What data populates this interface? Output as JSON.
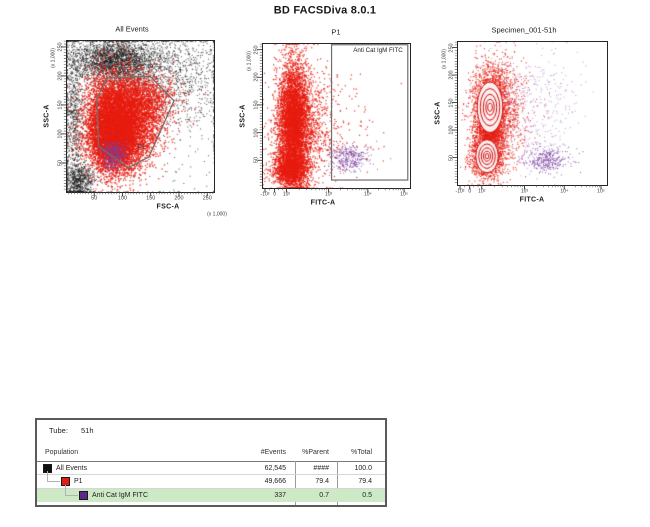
{
  "app_title": "BD FACSDiva 8.0.1",
  "colors": {
    "event_black": "#181818",
    "population_red": "#e71c10",
    "population_purple": "#7b3fa0",
    "contour_red": "#cc1212",
    "gate_stroke": "#6f6f6f",
    "axis_stroke": "#262626",
    "table_border": "#5a5a5a",
    "row_highlight_green": "#cde9c6"
  },
  "chart_data": [
    {
      "id": "all-events",
      "type": "scatter",
      "title": "All Events",
      "xlabel": "FSC-A",
      "ylabel": "SSC-A",
      "x_unit": "(x 1,000)",
      "y_unit": "(x 1,000)",
      "x_scale": "linear",
      "y_scale": "linear",
      "xlim": [
        0,
        262
      ],
      "ylim": [
        0,
        262
      ],
      "x_ticks": [
        50,
        100,
        150,
        200,
        250
      ],
      "y_ticks": [
        50,
        100,
        150,
        200,
        250
      ],
      "gates": [
        {
          "name": "P1",
          "shape": "polygon",
          "label_pos": [
            0.51,
            0.71
          ],
          "vertices": [
            [
              0.28,
              0.25
            ],
            [
              0.57,
              0.24
            ],
            [
              0.73,
              0.4
            ],
            [
              0.56,
              0.77
            ],
            [
              0.42,
              0.84
            ],
            [
              0.22,
              0.7
            ],
            [
              0.21,
              0.38
            ]
          ]
        }
      ],
      "populations": [
        {
          "name": "ungated events",
          "color": "#181818",
          "alpha": 0.75,
          "size": 1,
          "clusters": [
            {
              "cx": 0.33,
              "cy": 0.13,
              "sx": 0.14,
              "sy": 0.07,
              "n": 2400
            },
            {
              "cx": 0.55,
              "cy": 0.22,
              "sx": 0.25,
              "sy": 0.13,
              "n": 900
            },
            {
              "cx": 0.8,
              "cy": 0.25,
              "sx": 0.15,
              "sy": 0.18,
              "n": 450
            },
            {
              "cx": 0.05,
              "cy": 0.5,
              "sx": 0.035,
              "sy": 0.3,
              "n": 900
            },
            {
              "cx": 0.09,
              "cy": 0.92,
              "sx": 0.055,
              "sy": 0.055,
              "n": 650
            },
            {
              "cx": 0.5,
              "cy": 0.45,
              "sx": 0.45,
              "sy": 0.4,
              "n": 420
            }
          ]
        },
        {
          "name": "P1 events",
          "color": "#e71c10",
          "alpha": 0.9,
          "size": 1.3,
          "clusters": [
            {
              "cx": 0.38,
              "cy": 0.52,
              "sx": 0.12,
              "sy": 0.14,
              "n": 5200
            },
            {
              "cx": 0.33,
              "cy": 0.68,
              "sx": 0.09,
              "sy": 0.1,
              "n": 2600
            },
            {
              "cx": 0.47,
              "cy": 0.4,
              "sx": 0.13,
              "sy": 0.09,
              "n": 1200
            },
            {
              "cx": 0.26,
              "cy": 0.55,
              "sx": 0.065,
              "sy": 0.16,
              "n": 1500
            }
          ]
        },
        {
          "name": "Anti Cat IgM FITC events",
          "color": "#7b3fa0",
          "alpha": 0.9,
          "size": 1.2,
          "clusters": [
            {
              "cx": 0.32,
              "cy": 0.75,
              "sx": 0.045,
              "sy": 0.05,
              "n": 280
            }
          ]
        }
      ]
    },
    {
      "id": "p1",
      "type": "scatter",
      "title": "P1",
      "xlabel": "FITC-A",
      "ylabel": "SSC-A",
      "y_unit": "(x 1,000)",
      "x_scale": "biexponential",
      "y_scale": "linear",
      "ylim": [
        0,
        262
      ],
      "y_ticks": [
        50,
        100,
        150,
        200,
        250
      ],
      "x_ticks_log": [
        {
          "label": "-10²",
          "f": 0.02
        },
        {
          "label": "0",
          "f": 0.085
        },
        {
          "label": "10²",
          "f": 0.165
        },
        {
          "label": "10³",
          "f": 0.45
        },
        {
          "label": "10⁴",
          "f": 0.715
        },
        {
          "label": "10⁵",
          "f": 0.96
        }
      ],
      "gates": [
        {
          "name": "Anti Cat IgM FITC",
          "shape": "rect",
          "x0": 0.47,
          "y0": 0.012,
          "x1": 0.985,
          "y1": 0.945
        }
      ],
      "populations": [
        {
          "name": "P1 events",
          "color": "#e71c10",
          "alpha": 0.9,
          "size": 1.2,
          "clusters": [
            {
              "cx": 0.21,
              "cy": 0.55,
              "sx": 0.05,
              "sy": 0.21,
              "n": 5200
            },
            {
              "cx": 0.19,
              "cy": 0.87,
              "sx": 0.06,
              "sy": 0.055,
              "n": 1600
            },
            {
              "cx": 0.28,
              "cy": 0.6,
              "sx": 0.1,
              "sy": 0.18,
              "n": 900
            },
            {
              "cx": 0.45,
              "cy": 0.55,
              "sx": 0.18,
              "sy": 0.22,
              "n": 220
            }
          ]
        },
        {
          "name": "Anti Cat IgM FITC events",
          "color": "#7b3fa0",
          "alpha": 0.85,
          "size": 1,
          "clusters": [
            {
              "cx": 0.58,
              "cy": 0.79,
              "sx": 0.07,
              "sy": 0.045,
              "n": 330
            }
          ]
        }
      ]
    },
    {
      "id": "specimen-001-51h",
      "type": "scatter-contour",
      "title": "Specimen_001-51h",
      "xlabel": "FITC-A",
      "ylabel": "SSC-A",
      "y_unit": "(x 1,000)",
      "x_scale": "biexponential",
      "y_scale": "linear",
      "ylim": [
        0,
        262
      ],
      "y_ticks": [
        50,
        100,
        150,
        200,
        250
      ],
      "x_ticks_log": [
        {
          "label": "-10²",
          "f": 0.02
        },
        {
          "label": "0",
          "f": 0.085
        },
        {
          "label": "10²",
          "f": 0.165
        },
        {
          "label": "10³",
          "f": 0.45
        },
        {
          "label": "10⁴",
          "f": 0.715
        },
        {
          "label": "10⁵",
          "f": 0.96
        }
      ],
      "contours": {
        "color": "#cc1212",
        "lobes": [
          {
            "cx": 0.22,
            "cy": 0.46,
            "rings": [
              [
                0.085,
                0.175
              ],
              [
                0.065,
                0.13
              ],
              [
                0.045,
                0.09
              ],
              [
                0.028,
                0.055
              ],
              [
                0.015,
                0.028
              ]
            ]
          },
          {
            "cx": 0.2,
            "cy": 0.8,
            "rings": [
              [
                0.075,
                0.115
              ],
              [
                0.055,
                0.085
              ],
              [
                0.038,
                0.058
              ],
              [
                0.024,
                0.035
              ],
              [
                0.012,
                0.018
              ]
            ]
          }
        ]
      },
      "populations": [
        {
          "name": "specimen events",
          "color": "#e71c10",
          "alpha": 0.85,
          "size": 1.1,
          "clusters": [
            {
              "cx": 0.22,
              "cy": 0.46,
              "sx": 0.06,
              "sy": 0.15,
              "n": 2600
            },
            {
              "cx": 0.2,
              "cy": 0.8,
              "sx": 0.055,
              "sy": 0.075,
              "n": 1500
            },
            {
              "cx": 0.21,
              "cy": 0.64,
              "sx": 0.045,
              "sy": 0.05,
              "n": 600
            },
            {
              "cx": 0.3,
              "cy": 0.5,
              "sx": 0.08,
              "sy": 0.18,
              "n": 800
            }
          ]
        },
        {
          "name": "dim scatter",
          "color": "#b07ec4",
          "alpha": 0.8,
          "size": 1,
          "clusters": [
            {
              "cx": 0.5,
              "cy": 0.33,
              "sx": 0.17,
              "sy": 0.15,
              "n": 260
            },
            {
              "cx": 0.48,
              "cy": 0.6,
              "sx": 0.14,
              "sy": 0.14,
              "n": 160
            }
          ]
        },
        {
          "name": "Anti Cat IgM FITC events",
          "color": "#7b3fa0",
          "alpha": 0.85,
          "size": 1,
          "clusters": [
            {
              "cx": 0.6,
              "cy": 0.82,
              "sx": 0.07,
              "sy": 0.045,
              "n": 330
            }
          ]
        }
      ]
    }
  ],
  "table": {
    "tube_label": "Tube:",
    "tube_value": "51h",
    "columns": [
      "Population",
      "#Events",
      "%Parent",
      "%Total"
    ],
    "rows": [
      {
        "name": "All Events",
        "swatch": "#101010",
        "indent": 0,
        "events": "62,545",
        "parent": "####",
        "total": "100.0",
        "highlight": false
      },
      {
        "name": "P1",
        "swatch": "#e01d10",
        "indent": 1,
        "events": "49,666",
        "parent": "79.4",
        "total": "79.4",
        "highlight": false
      },
      {
        "name": "Anti Cat IgM FITC",
        "swatch": "#5b2a8e",
        "indent": 2,
        "events": "337",
        "parent": "0.7",
        "total": "0.5",
        "highlight": true
      }
    ]
  }
}
